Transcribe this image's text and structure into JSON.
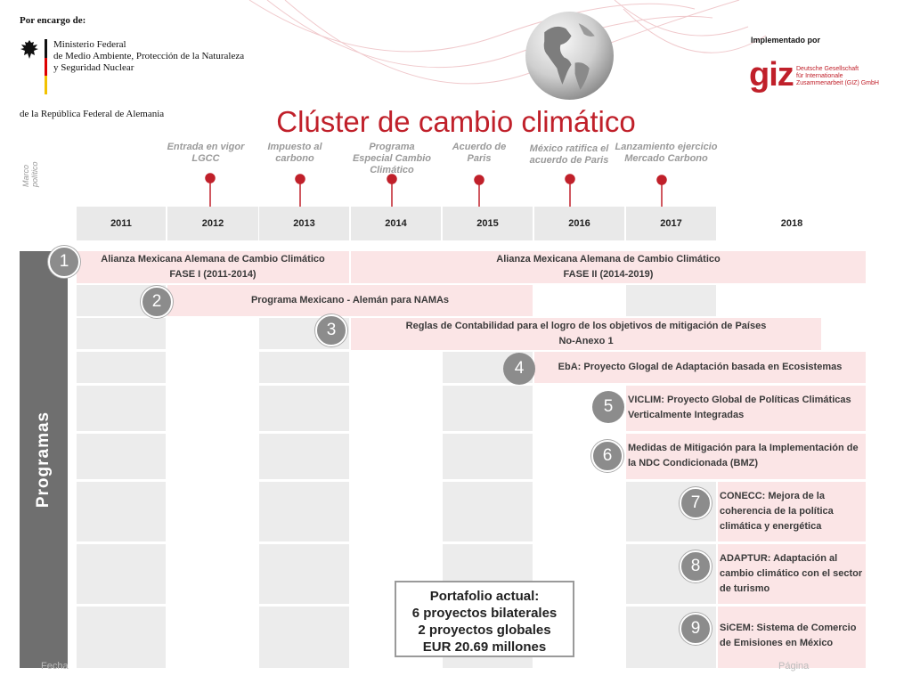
{
  "header": {
    "por_encargo": "Por encargo de:",
    "ministry_lines": [
      "Ministerio Federal",
      "de Medio Ambiente, Protección de la Naturaleza",
      "y Seguridad Nuclear"
    ],
    "republica": "de la República Federal de Alemania",
    "implementado": "Implementado por",
    "giz_logo": "giz",
    "giz_sub_lines": [
      "Deutsche Gesellschaft",
      "für Internationale",
      "Zusammenarbeit (GIZ) GmbH"
    ],
    "title": "Clúster de cambio climático"
  },
  "marco_label_lines": [
    "Marco",
    "político"
  ],
  "milestones": [
    {
      "label_lines": [
        "Entrada en vigor",
        "LGCC"
      ]
    },
    {
      "label_lines": [
        "Impuesto al",
        "carbono"
      ]
    },
    {
      "label_lines": [
        "Programa",
        "Especial Cambio",
        "Climático"
      ]
    },
    {
      "label_lines": [
        "Acuerdo de",
        "Paris"
      ]
    },
    {
      "label_lines": [
        "México ratifica el",
        "acuerdo de Paris"
      ]
    },
    {
      "label_lines": [
        "Lanzamiento ejercicio",
        "Mercado Carbono"
      ]
    }
  ],
  "years": [
    "2011",
    "2012",
    "2013",
    "2014",
    "2015",
    "2016",
    "2017",
    "2018"
  ],
  "programas_label": "Programas",
  "programs": [
    {
      "number": "1",
      "segments": [
        {
          "lines": [
            "Alianza Mexicana Alemana de Cambio Climático",
            "FASE I (2011-2014)"
          ]
        },
        {
          "lines": [
            "Alianza Mexicana Alemana de Cambio Climático",
            "FASE II (2014-2019)"
          ]
        }
      ]
    },
    {
      "number": "2",
      "lines": [
        "Programa Mexicano - Alemán para NAMAs"
      ]
    },
    {
      "number": "3",
      "lines": [
        "Reglas de Contabilidad para el logro de los objetivos de mitigación de Países",
        "No-Anexo 1"
      ]
    },
    {
      "number": "4",
      "lines": [
        "EbA: Proyecto Glogal de Adaptación basada en Ecosistemas"
      ]
    },
    {
      "number": "5",
      "lines": [
        "VICLIM: Proyecto Global de Políticas Climáticas",
        "Verticalmente Integradas"
      ]
    },
    {
      "number": "6",
      "lines": [
        "Medidas de Mitigación para la Implementación de",
        "la NDC Condicionada (BMZ)"
      ]
    },
    {
      "number": "7",
      "lines": [
        "CONECC: Mejora de la",
        "coherencia de la política",
        "climática y energética"
      ]
    },
    {
      "number": "8",
      "lines": [
        "ADAPTUR: Adaptación al",
        "cambio climático con el sector",
        "de turismo"
      ]
    },
    {
      "number": "9",
      "lines": [
        "SiCEM: Sistema de Comercio",
        "de Emisiones en México"
      ]
    }
  ],
  "portafolio_lines": [
    "Portafolio actual:",
    "6 proyectos bilaterales",
    "2 proyectos globales",
    "EUR 20.69 millones"
  ],
  "footer": {
    "left": "Fecha",
    "right": "Página"
  },
  "colors": {
    "accent": "#c0202a",
    "band": "#fbe5e6",
    "cell": "#ececec",
    "programas_bar": "#6f6f6f"
  }
}
